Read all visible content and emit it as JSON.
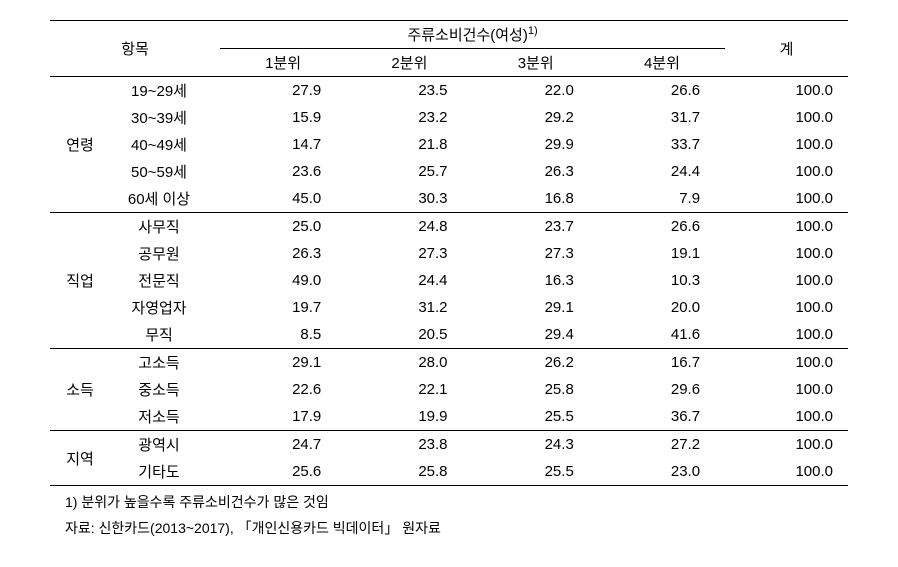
{
  "headers": {
    "item": "항목",
    "main": "주류소비건수(여성)",
    "sup": "1)",
    "q1": "1분위",
    "q2": "2분위",
    "q3": "3분위",
    "q4": "4분위",
    "total": "계"
  },
  "groups": [
    {
      "name": "연령",
      "rows": [
        {
          "label": "19~29세",
          "v": [
            "27.9",
            "23.5",
            "22.0",
            "26.6",
            "100.0"
          ]
        },
        {
          "label": "30~39세",
          "v": [
            "15.9",
            "23.2",
            "29.2",
            "31.7",
            "100.0"
          ]
        },
        {
          "label": "40~49세",
          "v": [
            "14.7",
            "21.8",
            "29.9",
            "33.7",
            "100.0"
          ]
        },
        {
          "label": "50~59세",
          "v": [
            "23.6",
            "25.7",
            "26.3",
            "24.4",
            "100.0"
          ]
        },
        {
          "label": "60세 이상",
          "v": [
            "45.0",
            "30.3",
            "16.8",
            "7.9",
            "100.0"
          ]
        }
      ]
    },
    {
      "name": "직업",
      "rows": [
        {
          "label": "사무직",
          "v": [
            "25.0",
            "24.8",
            "23.7",
            "26.6",
            "100.0"
          ]
        },
        {
          "label": "공무원",
          "v": [
            "26.3",
            "27.3",
            "27.3",
            "19.1",
            "100.0"
          ]
        },
        {
          "label": "전문직",
          "v": [
            "49.0",
            "24.4",
            "16.3",
            "10.3",
            "100.0"
          ]
        },
        {
          "label": "자영업자",
          "v": [
            "19.7",
            "31.2",
            "29.1",
            "20.0",
            "100.0"
          ]
        },
        {
          "label": "무직",
          "v": [
            "8.5",
            "20.5",
            "29.4",
            "41.6",
            "100.0"
          ]
        }
      ]
    },
    {
      "name": "소득",
      "rows": [
        {
          "label": "고소득",
          "v": [
            "29.1",
            "28.0",
            "26.2",
            "16.7",
            "100.0"
          ]
        },
        {
          "label": "중소득",
          "v": [
            "22.6",
            "22.1",
            "25.8",
            "29.6",
            "100.0"
          ]
        },
        {
          "label": "저소득",
          "v": [
            "17.9",
            "19.9",
            "25.5",
            "36.7",
            "100.0"
          ]
        }
      ]
    },
    {
      "name": "지역",
      "rows": [
        {
          "label": "광역시",
          "v": [
            "24.7",
            "23.8",
            "24.3",
            "27.2",
            "100.0"
          ]
        },
        {
          "label": "기타도",
          "v": [
            "25.6",
            "25.8",
            "25.5",
            "23.0",
            "100.0"
          ]
        }
      ]
    }
  ],
  "footnotes": {
    "note1": "1) 분위가 높을수록 주류소비건수가 많은 것임",
    "source": "자료: 신한카드(2013~2017), 「개인신용카드 빅데이터」 원자료"
  },
  "style": {
    "background": "#ffffff",
    "text_color": "#000000",
    "border_color": "#000000",
    "fontsize_body": 15,
    "fontsize_footnote": 14
  }
}
